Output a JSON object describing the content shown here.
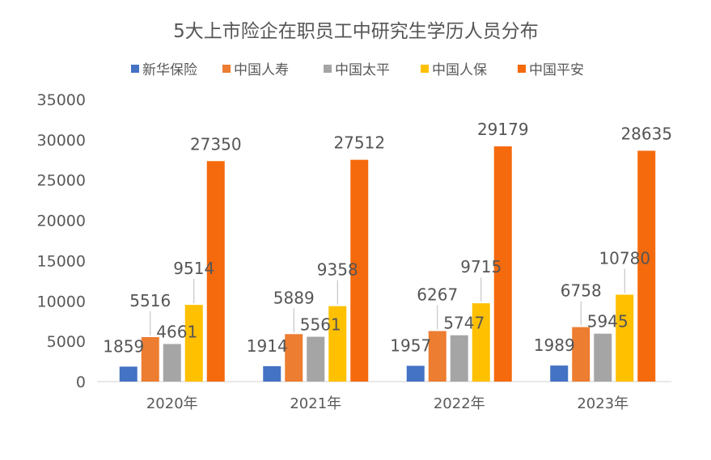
{
  "chart_data": {
    "type": "bar",
    "title": "5大上市险企在职员工中研究生学历人员分布",
    "categories": [
      "2020年",
      "2021年",
      "2022年",
      "2023年"
    ],
    "ylim": [
      0,
      35000
    ],
    "yticks": [
      0,
      5000,
      10000,
      15000,
      20000,
      25000,
      30000,
      35000
    ],
    "grid": false,
    "legend_position": "top",
    "series": [
      {
        "name": "新华保险",
        "color": "#4472C4",
        "values": [
          1859,
          1914,
          1957,
          1989
        ]
      },
      {
        "name": "中国人寿",
        "color": "#ED7D31",
        "values": [
          5516,
          5889,
          6267,
          6758
        ]
      },
      {
        "name": "中国太平",
        "color": "#A5A5A5",
        "values": [
          4661,
          5561,
          5747,
          5945
        ]
      },
      {
        "name": "中国人保",
        "color": "#FFC000",
        "values": [
          9514,
          9358,
          9715,
          10780
        ]
      },
      {
        "name": "中国平安",
        "color": "#F56A0C",
        "values": [
          27350,
          27512,
          29179,
          28635
        ]
      }
    ]
  }
}
